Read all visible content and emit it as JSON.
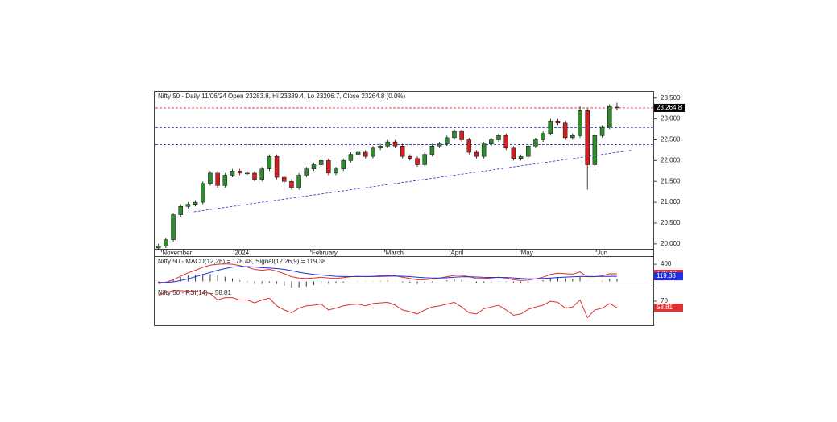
{
  "chart_data": [
    {
      "type": "candlestick",
      "title": "Nifty 50 - Daily 11/06/24 Open 23283.8, Hi 23389.4, Lo 23206.7, Close 23264.8 (0.0%)",
      "open": [
        19900,
        19950,
        20100,
        20700,
        20900,
        20950,
        21000,
        21450,
        21700,
        21400,
        21650,
        21750,
        21700,
        21700,
        21550,
        21800,
        22100,
        21600,
        21500,
        21350,
        21650,
        21800,
        21900,
        22000,
        21700,
        21800,
        22000,
        22150,
        22200,
        22100,
        22300,
        22350,
        22450,
        22350,
        22100,
        22050,
        21900,
        22150,
        22350,
        22400,
        22550,
        22700,
        22500,
        22200,
        22100,
        22400,
        22500,
        22600,
        22300,
        22050,
        22100,
        22350,
        22500,
        22650,
        22950,
        22900,
        22550,
        22600,
        23200,
        21900,
        22600,
        22800,
        23283.8
      ],
      "high": [
        20000,
        20150,
        20750,
        20950,
        21000,
        21050,
        21500,
        21750,
        21750,
        21700,
        21800,
        21800,
        21750,
        21750,
        21850,
        22150,
        22150,
        21650,
        21550,
        21700,
        21850,
        21950,
        22050,
        22050,
        21850,
        22050,
        22200,
        22250,
        22250,
        22350,
        22400,
        22500,
        22500,
        22400,
        22150,
        22100,
        22200,
        22400,
        22450,
        22600,
        22750,
        22750,
        22550,
        22250,
        22450,
        22550,
        22650,
        22650,
        22350,
        22150,
        22400,
        22550,
        22700,
        23000,
        23000,
        22950,
        22650,
        23300,
        23250,
        22650,
        22850,
        23350,
        23389.4
      ],
      "low": [
        19850,
        19900,
        20050,
        20650,
        20850,
        20900,
        20950,
        21400,
        21350,
        21350,
        21600,
        21650,
        21650,
        21500,
        21500,
        21750,
        21550,
        21450,
        21300,
        21300,
        21600,
        21750,
        21850,
        21650,
        21650,
        21750,
        21950,
        22100,
        22050,
        22050,
        22250,
        22300,
        22300,
        22050,
        22000,
        21850,
        21850,
        22100,
        22300,
        22350,
        22500,
        22450,
        22150,
        22050,
        22050,
        22350,
        22450,
        22250,
        22000,
        22000,
        22050,
        22300,
        22450,
        22600,
        22850,
        22500,
        22500,
        22550,
        21300,
        21750,
        22550,
        22750,
        23206.7
      ],
      "close": [
        19950,
        20100,
        20700,
        20900,
        20950,
        21000,
        21450,
        21700,
        21400,
        21650,
        21750,
        21700,
        21700,
        21550,
        21800,
        22100,
        21600,
        21500,
        21350,
        21650,
        21800,
        21900,
        22000,
        21700,
        21800,
        22000,
        22150,
        22200,
        22100,
        22300,
        22350,
        22450,
        22350,
        22100,
        22050,
        21900,
        22150,
        22350,
        22400,
        22550,
        22700,
        22500,
        22200,
        22100,
        22400,
        22500,
        22600,
        22300,
        22050,
        22100,
        22350,
        22500,
        22650,
        22950,
        22900,
        22550,
        22600,
        23200,
        21900,
        22600,
        22800,
        23300,
        23264.8
      ],
      "up_color": "#2e8b2e",
      "down_color": "#d02020",
      "xlim": [
        -0.4,
        66.8
      ],
      "xticks": [
        {
          "value": 0.4,
          "label": "November"
        },
        {
          "value": 10.2,
          "label": "2024"
        },
        {
          "value": 20.6,
          "label": "February"
        },
        {
          "value": 30.6,
          "label": "March"
        },
        {
          "value": 39.4,
          "label": "April"
        },
        {
          "value": 48.9,
          "label": "May"
        },
        {
          "value": 59.2,
          "label": "Jun"
        }
      ],
      "ylim": [
        19900,
        23650
      ],
      "yticks": [
        {
          "value": 20000,
          "label": "20,000"
        },
        {
          "value": 20500,
          "label": "20,500"
        },
        {
          "value": 21000,
          "label": "21,000"
        },
        {
          "value": 21500,
          "label": "21,500"
        },
        {
          "value": 22000,
          "label": "22,000"
        },
        {
          "value": 22500,
          "label": "22,500"
        },
        {
          "value": 23000,
          "label": "23,000"
        },
        {
          "value": 23500,
          "label": "23,500"
        }
      ],
      "last_label": {
        "value": 23264.8,
        "label": "23,264.8"
      },
      "levels": [
        {
          "value": 23264.8,
          "color": "#e03030"
        },
        {
          "value": 22790,
          "color": "#3030d0"
        },
        {
          "value": 22385,
          "color": "#3030d0"
        }
      ],
      "trendline": {
        "x": [
          4.8,
          64.1
        ],
        "y": [
          20770,
          22250
        ],
        "color": "#3030d0"
      }
    },
    {
      "type": "macd",
      "title": "Nifty 50 - MACD(12,26) = 178.48, Signal(12,26,9) = 119.38",
      "series": [
        {
          "color": "#e03030",
          "values": [
            -50,
            -20,
            40,
            120,
            200,
            260,
            330,
            380,
            400,
            410,
            400,
            370,
            330,
            280,
            260,
            280,
            240,
            180,
            110,
            80,
            70,
            80,
            100,
            80,
            70,
            90,
            110,
            120,
            110,
            120,
            130,
            140,
            130,
            100,
            70,
            40,
            40,
            60,
            80,
            110,
            140,
            140,
            110,
            70,
            70,
            80,
            100,
            80,
            40,
            20,
            30,
            60,
            100,
            160,
            190,
            180,
            170,
            220,
            110,
            110,
            130,
            180,
            178.48
          ]
        },
        {
          "color": "#2030e0",
          "values": [
            -20,
            -25,
            -10,
            20,
            60,
            110,
            160,
            210,
            260,
            300,
            330,
            345,
            345,
            335,
            320,
            310,
            300,
            280,
            250,
            215,
            185,
            165,
            150,
            135,
            120,
            115,
            112,
            114,
            114,
            115,
            118,
            122,
            125,
            122,
            112,
            98,
            86,
            80,
            80,
            86,
            98,
            108,
            110,
            102,
            96,
            93,
            94,
            92,
            82,
            70,
            62,
            62,
            70,
            80,
            92,
            101,
            108,
            115,
            114,
            114,
            117,
            118,
            119.38
          ]
        }
      ],
      "histogram": [
        -30,
        5,
        50,
        100,
        140,
        150,
        170,
        170,
        140,
        110,
        70,
        25,
        -15,
        -55,
        -60,
        -30,
        -60,
        -100,
        -140,
        -135,
        -115,
        -85,
        -50,
        -55,
        -50,
        -25,
        -2,
        6,
        -4,
        5,
        12,
        18,
        5,
        -22,
        -42,
        -58,
        -46,
        -20,
        0,
        24,
        42,
        32,
        0,
        -32,
        -26,
        -13,
        6,
        -12,
        -42,
        -50,
        -32,
        -2,
        30,
        80,
        98,
        79,
        62,
        105,
        -4,
        -4,
        13,
        62,
        59.1
      ],
      "histogram_color": "#333333",
      "ylim": [
        -140,
        570
      ],
      "yticks": [
        400
      ],
      "last_labels": [
        {
          "value": 178.48,
          "label": "178.48"
        },
        {
          "value": 119.38,
          "label": "119.38"
        }
      ]
    },
    {
      "type": "line",
      "title": "Nifty 50 - RSI(14) = 58.81",
      "series": [
        {
          "color": "#e03030",
          "values": [
            80,
            85,
            88,
            88,
            87,
            87,
            85,
            83,
            72,
            76,
            76,
            72,
            72,
            67,
            72,
            75,
            62,
            55,
            50,
            58,
            62,
            63,
            65,
            55,
            58,
            62,
            64,
            65,
            62,
            66,
            67,
            68,
            63,
            55,
            52,
            48,
            55,
            60,
            62,
            65,
            68,
            60,
            50,
            48,
            57,
            60,
            63,
            55,
            46,
            48,
            56,
            60,
            63,
            70,
            68,
            58,
            60,
            72,
            42,
            55,
            58,
            66,
            58.81
          ]
        }
      ],
      "ylim": [
        30,
        92
      ],
      "yticks": [
        70
      ],
      "last_label": {
        "value": 58.81,
        "label": "58.81"
      }
    }
  ]
}
